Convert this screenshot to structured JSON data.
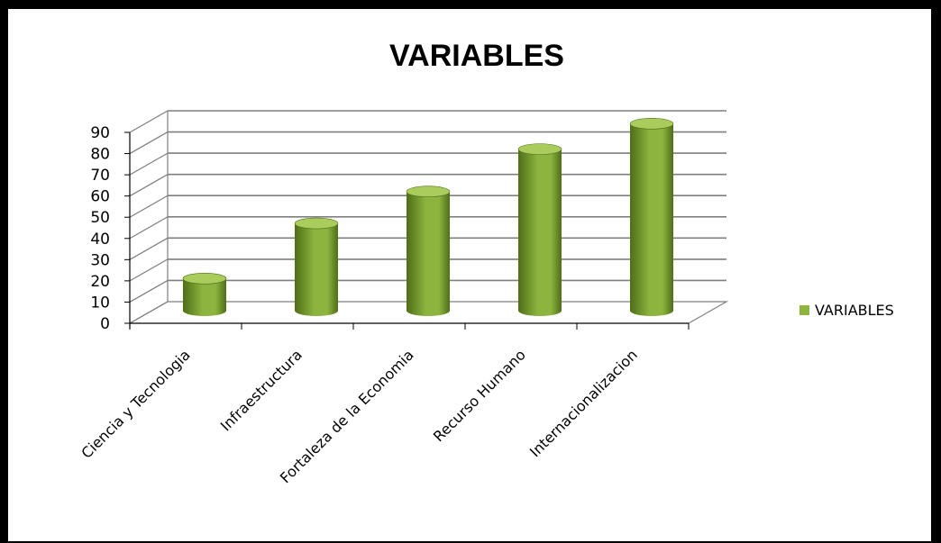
{
  "chart_data": {
    "type": "bar",
    "style": "3d-cylinder",
    "title": "VARIABLES",
    "categories": [
      "Ciencia y Tecnologia",
      "Infraestructura",
      "Fortaleza de la Economia",
      "Recurso Humano",
      "Internacionalizacion"
    ],
    "series": [
      {
        "name": "VARIABLES",
        "values": [
          16,
          42,
          57,
          77,
          89
        ]
      }
    ],
    "y_ticks": [
      "0",
      "10",
      "20",
      "30",
      "40",
      "50",
      "60",
      "70",
      "80",
      "90"
    ],
    "ylim": [
      0,
      90
    ],
    "grid": true,
    "legend_position": "right",
    "colors": {
      "bar": "#8db43e",
      "bar_dark": "#4e6e18",
      "bar_top": "#a9cc5c",
      "grid": "#7f7f7f"
    }
  }
}
